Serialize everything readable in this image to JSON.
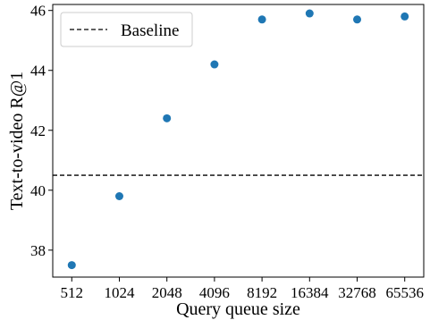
{
  "chart_data": {
    "type": "scatter",
    "xlabel": "Query queue size",
    "ylabel": "Text-to-video R@1",
    "categories": [
      "512",
      "1024",
      "2048",
      "4096",
      "8192",
      "16384",
      "32768",
      "65536"
    ],
    "series": [
      {
        "values": [
          37.5,
          39.8,
          42.4,
          44.2,
          45.7,
          45.9,
          45.7,
          45.8
        ],
        "color": "#1f77b4"
      }
    ],
    "baseline": {
      "label": "Baseline",
      "value": 40.5,
      "style": "dashed",
      "color": "#000000"
    },
    "ylim": [
      37.1,
      46.2
    ],
    "yticks": [
      38,
      40,
      42,
      44,
      46
    ],
    "grid": false,
    "legend_position": "top-left"
  }
}
